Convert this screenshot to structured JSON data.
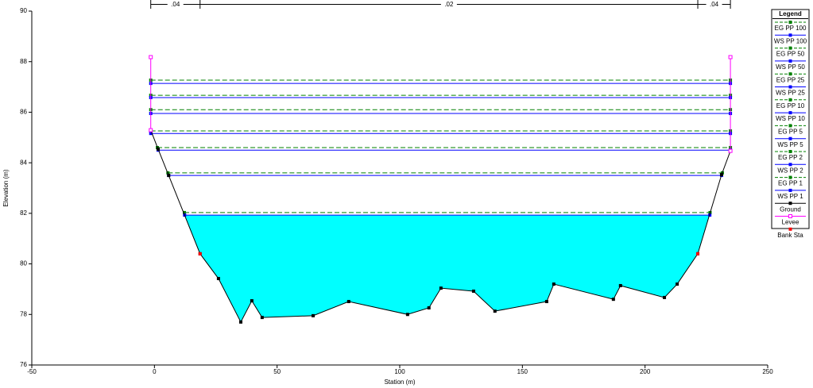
{
  "chart_data": {
    "type": "cross-section",
    "x_label": "Station (m)",
    "y_label": "Elevation (m)",
    "xlim": [
      -50,
      250
    ],
    "xticks": [
      -50,
      0,
      50,
      100,
      150,
      200,
      250
    ],
    "ylim": [
      76,
      90
    ],
    "yticks": [
      76,
      78,
      80,
      82,
      84,
      86,
      88,
      90
    ],
    "legend_title": "Legend",
    "legend_position": "right",
    "manning_n": {
      "labels": [
        ".04",
        ".02",
        ".04"
      ],
      "breaks": [
        -1.5,
        18.6,
        221.5,
        234.8
      ]
    },
    "series": [
      {
        "name": "EG PP 100",
        "kind": "eg",
        "color": "#008000",
        "x": [
          -1.5,
          234.8
        ],
        "values": [
          87.27,
          87.27
        ]
      },
      {
        "name": "WS PP 100",
        "kind": "ws",
        "color": "#0000ff",
        "x": [
          -1.5,
          234.8
        ],
        "values": [
          87.14,
          87.14
        ]
      },
      {
        "name": "EG PP 50",
        "kind": "eg",
        "color": "#008000",
        "x": [
          -1.5,
          234.8
        ],
        "values": [
          86.67,
          86.67
        ]
      },
      {
        "name": "WS PP 50",
        "kind": "ws",
        "color": "#0000ff",
        "x": [
          -1.5,
          234.8
        ],
        "values": [
          86.58,
          86.58
        ]
      },
      {
        "name": "EG PP 25",
        "kind": "eg",
        "color": "#008000",
        "x": [
          -1.5,
          234.8
        ],
        "values": [
          86.1,
          86.1
        ]
      },
      {
        "name": "WS PP 25",
        "kind": "ws",
        "color": "#0000ff",
        "x": [
          -1.5,
          234.8
        ],
        "values": [
          85.95,
          85.95
        ]
      },
      {
        "name": "EG PP 10",
        "kind": "eg",
        "color": "#008000",
        "x": [
          -1.5,
          234.8
        ],
        "values": [
          85.26,
          85.26
        ]
      },
      {
        "name": "WS PP 10",
        "kind": "ws",
        "color": "#0000ff",
        "x": [
          -1.5,
          234.8
        ],
        "values": [
          85.16,
          85.16
        ]
      },
      {
        "name": "EG PP 5",
        "kind": "eg",
        "color": "#008000",
        "x": [
          1.2,
          234.8
        ],
        "values": [
          84.6,
          84.6
        ]
      },
      {
        "name": "WS PP 5",
        "kind": "ws",
        "color": "#0000ff",
        "x": [
          1.5,
          234.8
        ],
        "values": [
          84.5,
          84.5
        ]
      },
      {
        "name": "EG PP 2",
        "kind": "eg",
        "color": "#008000",
        "x": [
          5.5,
          231.5
        ],
        "values": [
          83.6,
          83.6
        ]
      },
      {
        "name": "WS PP 2",
        "kind": "ws",
        "color": "#0000ff",
        "x": [
          5.8,
          231.2
        ],
        "values": [
          83.5,
          83.5
        ]
      },
      {
        "name": "EG PP 1",
        "kind": "eg",
        "color": "#008000",
        "x": [
          12.2,
          226.5
        ],
        "values": [
          82.03,
          82.03
        ]
      },
      {
        "name": "WS PP 1",
        "kind": "ws",
        "color": "#0000ff",
        "fill": "#00ffff",
        "x": [
          12.3,
          226.4
        ],
        "values": [
          81.93,
          81.93
        ]
      },
      {
        "name": "Ground",
        "kind": "ground",
        "color": "#000000",
        "x": [
          -1.5,
          1.5,
          5.8,
          18.6,
          26.1,
          35.2,
          39.7,
          43.9,
          64.7,
          79.2,
          103.2,
          111.9,
          116.8,
          130.1,
          138.8,
          159.9,
          162.8,
          187.1,
          190.0,
          207.9,
          213.1,
          221.5,
          231.2,
          234.8
        ],
        "values": [
          85.29,
          84.54,
          83.5,
          80.4,
          79.42,
          77.7,
          78.54,
          77.88,
          77.95,
          78.51,
          78.0,
          78.26,
          79.04,
          78.92,
          78.13,
          78.51,
          79.2,
          78.6,
          79.14,
          78.67,
          79.2,
          80.4,
          83.53,
          84.47
        ]
      },
      {
        "name": "Levee",
        "kind": "levee",
        "color": "#ff00ff",
        "x": [
          -1.5,
          -1.5,
          null,
          234.8,
          234.8
        ],
        "values": [
          85.29,
          88.18,
          null,
          84.47,
          88.18
        ]
      },
      {
        "name": "Bank Sta",
        "kind": "bank",
        "color": "#ff0000",
        "x": [
          18.6,
          221.5
        ],
        "values": [
          80.4,
          80.4
        ]
      }
    ]
  }
}
